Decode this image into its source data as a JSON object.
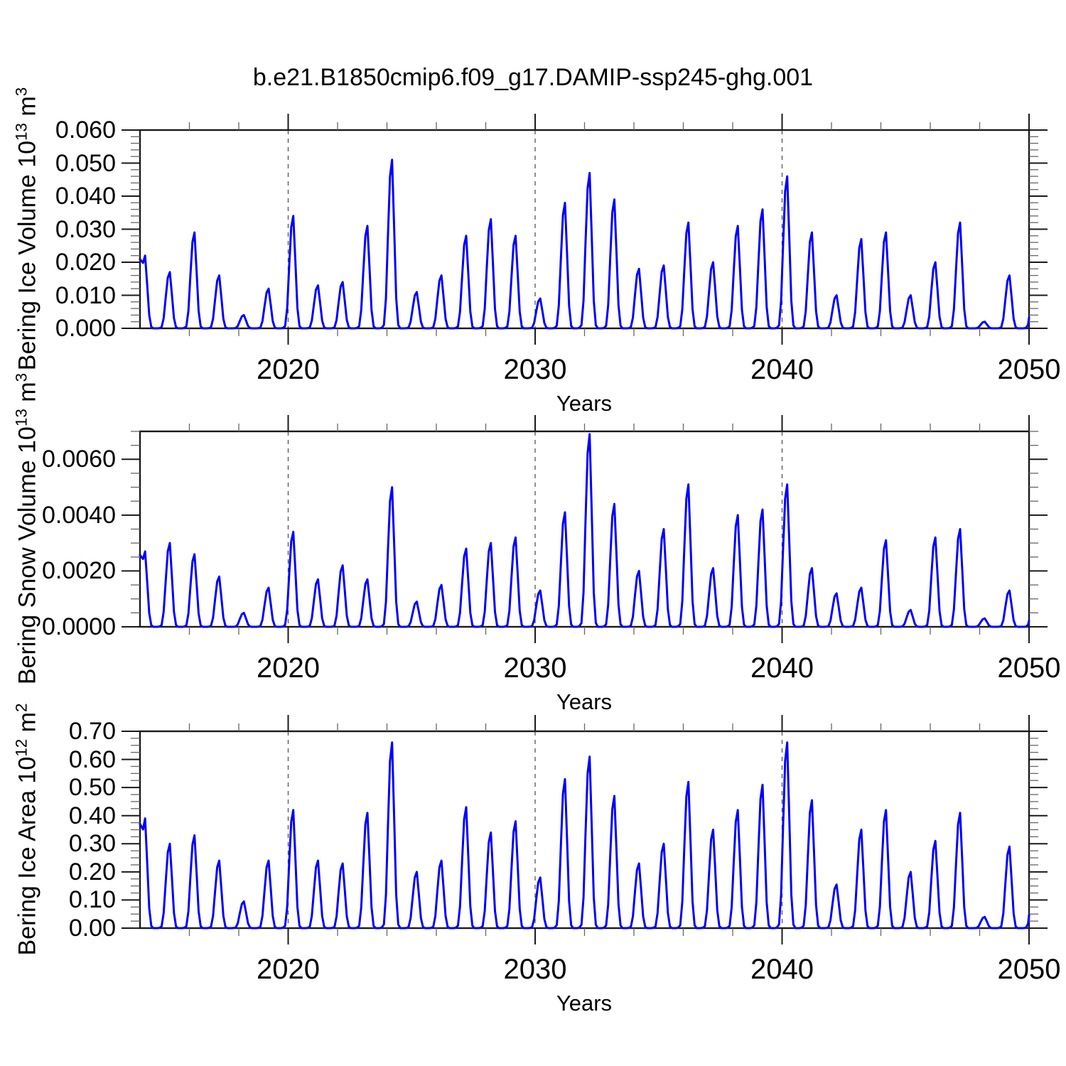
{
  "title": "b.e21.B1850cmip6.f09_g17.DAMIP-ssp245-ghg.001",
  "chart_data": {
    "kind": "seasonal_monthly_time_series",
    "axis_color": "#1a1a1a",
    "minor_tick_color": "#666666",
    "gridline_color": "#555555",
    "seasonal_fraction_by_month": [
      0.55,
      0.9,
      1.0,
      0.6,
      0.18,
      0.02,
      0,
      0,
      0,
      0.004,
      0.02,
      0.18
    ],
    "panels": [
      {
        "name": "bering-ice-volume",
        "type": "line",
        "line_color": "#0000ff",
        "xlabel": "Years",
        "ylabel": {
          "prefix": "Bering Ice Volume 10",
          "sup1": "13",
          "mid": " m",
          "sup2": "3"
        },
        "x_start_year": 2014,
        "x_end_year": 2050,
        "x_tick_labels": [
          "2020",
          "2030",
          "2040",
          "2050"
        ],
        "x_tick_values": [
          2020,
          2030,
          2040,
          2050
        ],
        "x_minor_tick_step_years": 2,
        "x_gridline_years": [
          2020,
          2030,
          2040
        ],
        "y_max": 0.06,
        "y_tick_labels": [
          "0.000",
          "0.010",
          "0.020",
          "0.030",
          "0.040",
          "0.050",
          "0.060"
        ],
        "y_tick_values": [
          0,
          0.01,
          0.02,
          0.03,
          0.04,
          0.05,
          0.06
        ],
        "y_minor_step": 0.002,
        "annual_peak_values": [
          0.022,
          0.017,
          0.029,
          0.016,
          0.004,
          0.012,
          0.034,
          0.013,
          0.014,
          0.031,
          0.051,
          0.011,
          0.016,
          0.028,
          0.033,
          0.028,
          0.009,
          0.038,
          0.047,
          0.039,
          0.018,
          0.019,
          0.032,
          0.02,
          0.031,
          0.036,
          0.046,
          0.029,
          0.01,
          0.027,
          0.029,
          0.01,
          0.02,
          0.032,
          0.002,
          0.016,
          0.006
        ]
      },
      {
        "name": "bering-snow-volume",
        "type": "line",
        "line_color": "#0000ff",
        "xlabel": "Years",
        "ylabel": {
          "prefix": "Bering Snow Volume 10",
          "sup1": "13",
          "mid": " m",
          "sup2": "3"
        },
        "x_start_year": 2014,
        "x_end_year": 2050,
        "x_tick_labels": [
          "2020",
          "2030",
          "2040",
          "2050"
        ],
        "x_tick_values": [
          2020,
          2030,
          2040,
          2050
        ],
        "x_minor_tick_step_years": 2,
        "x_gridline_years": [
          2020,
          2030,
          2040
        ],
        "y_max": 0.007,
        "y_tick_labels": [
          "0.0000",
          "0.0020",
          "0.0040",
          "0.0060"
        ],
        "y_tick_values": [
          0,
          0.002,
          0.004,
          0.006
        ],
        "y_minor_step": 0.0005,
        "annual_peak_values": [
          0.0027,
          0.003,
          0.0026,
          0.0018,
          0.0005,
          0.0014,
          0.0034,
          0.0017,
          0.0022,
          0.0017,
          0.005,
          0.0009,
          0.0015,
          0.0028,
          0.003,
          0.0032,
          0.0013,
          0.0041,
          0.0069,
          0.0044,
          0.002,
          0.0035,
          0.0051,
          0.0021,
          0.004,
          0.0042,
          0.0051,
          0.0021,
          0.0012,
          0.0014,
          0.0031,
          0.0006,
          0.0032,
          0.0035,
          0.0003,
          0.0013,
          0.0004
        ]
      },
      {
        "name": "bering-ice-area",
        "type": "line",
        "line_color": "#0000ff",
        "xlabel": "Years",
        "ylabel": {
          "prefix": "Bering Ice Area 10",
          "sup1": "12",
          "mid": " m",
          "sup2": "2"
        },
        "x_start_year": 2014,
        "x_end_year": 2050,
        "x_tick_labels": [
          "2020",
          "2030",
          "2040",
          "2050"
        ],
        "x_tick_values": [
          2020,
          2030,
          2040,
          2050
        ],
        "x_minor_tick_step_years": 2,
        "x_gridline_years": [
          2020,
          2030,
          2040
        ],
        "y_max": 0.7,
        "y_tick_labels": [
          "0.00",
          "0.10",
          "0.20",
          "0.30",
          "0.40",
          "0.50",
          "0.60",
          "0.70"
        ],
        "y_tick_values": [
          0,
          0.1,
          0.2,
          0.3,
          0.4,
          0.5,
          0.6,
          0.7
        ],
        "y_minor_step": 0.025,
        "annual_peak_values": [
          0.39,
          0.3,
          0.33,
          0.24,
          0.095,
          0.24,
          0.42,
          0.24,
          0.23,
          0.41,
          0.66,
          0.2,
          0.24,
          0.43,
          0.34,
          0.38,
          0.18,
          0.53,
          0.61,
          0.47,
          0.23,
          0.3,
          0.52,
          0.35,
          0.42,
          0.51,
          0.66,
          0.455,
          0.155,
          0.35,
          0.42,
          0.2,
          0.31,
          0.41,
          0.04,
          0.29,
          0.085
        ]
      }
    ]
  }
}
